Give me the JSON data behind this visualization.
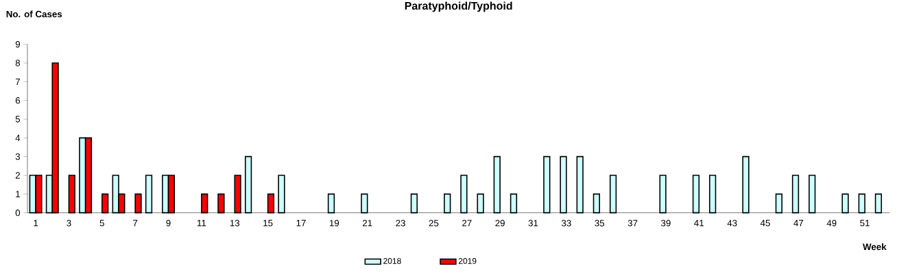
{
  "chart_data": {
    "type": "bar",
    "title": "Paratyphoid/Typhoid",
    "ylabel": "No. of Cases",
    "xlabel": "Week",
    "categories": [
      "1",
      null,
      "3",
      null,
      "5",
      null,
      "7",
      null,
      "9",
      null,
      "11",
      null,
      "13",
      null,
      "15",
      null,
      "17",
      null,
      "19",
      null,
      "21",
      null,
      "23",
      null,
      "25",
      null,
      "27",
      null,
      "29",
      null,
      "31",
      null,
      "33",
      null,
      "35",
      null,
      "37",
      null,
      "39",
      null,
      "41",
      null,
      "43",
      null,
      "45",
      null,
      "47",
      null,
      "49",
      null,
      "51",
      null
    ],
    "series": [
      {
        "name": "2018",
        "color": "#ccffff",
        "values": [
          2,
          2,
          null,
          4,
          null,
          2,
          null,
          2,
          2,
          null,
          null,
          null,
          null,
          3,
          null,
          2,
          null,
          null,
          1,
          null,
          1,
          null,
          null,
          1,
          null,
          1,
          2,
          1,
          3,
          1,
          null,
          3,
          3,
          3,
          1,
          2,
          null,
          null,
          2,
          null,
          2,
          2,
          null,
          3,
          null,
          1,
          2,
          2,
          null,
          1,
          1,
          1
        ]
      },
      {
        "name": "2019",
        "color": "#ff0000",
        "values": [
          2,
          8,
          2,
          4,
          1,
          1,
          1,
          null,
          2,
          null,
          1,
          1,
          2,
          null,
          1,
          null,
          null,
          null,
          null,
          null,
          null,
          null,
          null,
          null,
          null,
          null,
          null,
          null,
          null,
          null,
          null,
          null,
          null,
          null,
          null,
          null,
          null,
          null,
          null,
          null,
          null,
          null,
          null,
          null,
          null,
          null,
          null,
          null,
          null,
          null,
          null,
          null
        ]
      }
    ],
    "ylim": [
      0,
      9
    ],
    "yticks": [
      0,
      1,
      2,
      3,
      4,
      5,
      6,
      7,
      8,
      9
    ],
    "grid": false,
    "legend": "bottom"
  }
}
